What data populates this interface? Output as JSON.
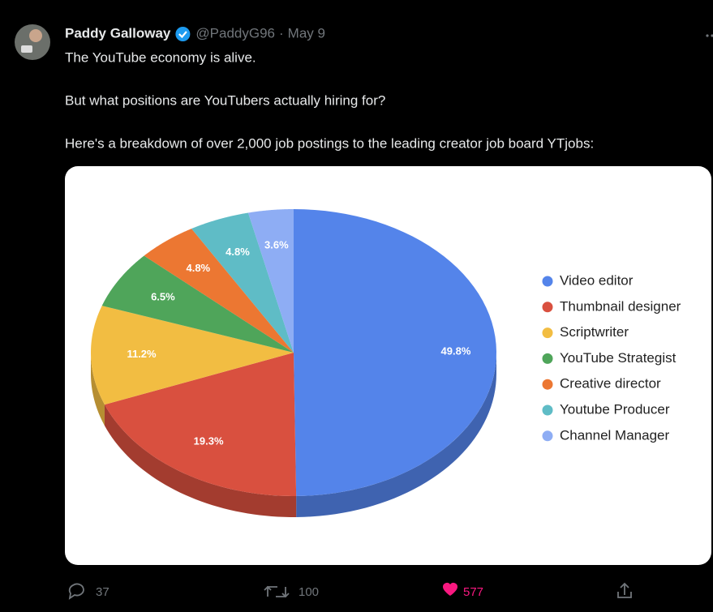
{
  "tweet": {
    "author": "Paddy Galloway",
    "handle": "@PaddyG96",
    "separator": "·",
    "date": "May 9",
    "text": [
      "The YouTube economy is alive.",
      "But what positions are YouTubers actually hiring for?",
      "Here's a breakdown of over 2,000 job postings to the leading creator job board YTjobs:"
    ],
    "replies": 37,
    "retweets": 100,
    "likes": 577
  },
  "chart_data": {
    "type": "pie",
    "three_d": true,
    "legend": "right",
    "categories": [
      "Video editor",
      "Thumbnail designer",
      "Scriptwriter",
      "YouTube Strategist",
      "Creative director",
      "Youtube Producer",
      "Channel Manager"
    ],
    "values": [
      49.8,
      19.3,
      11.2,
      6.5,
      4.8,
      4.8,
      3.6
    ],
    "value_labels": [
      "49.8%",
      "19.3%",
      "11.2%",
      "6.5%",
      "4.8%",
      "4.8%",
      "3.6%"
    ],
    "colors": [
      "#5484ea",
      "#d9503f",
      "#f2bd42",
      "#4fa55a",
      "#ec7732",
      "#5fbcc6",
      "#8eadf4"
    ]
  }
}
